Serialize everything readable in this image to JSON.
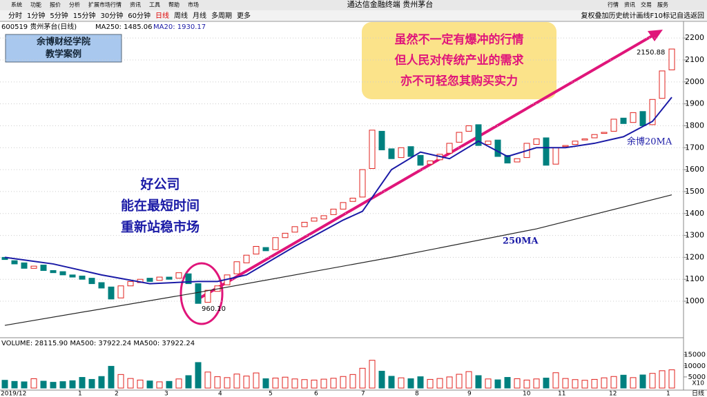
{
  "window": {
    "title": "通达信金融终端  贵州茅台",
    "menu": [
      "系统",
      "功能",
      "报价",
      "分析",
      "扩展市场行情",
      "资讯",
      "工具",
      "帮助",
      "市场"
    ],
    "buttons": [
      "行情",
      "资讯",
      "交易",
      "服务"
    ]
  },
  "toolbar": {
    "periods": [
      "分时",
      "1分钟",
      "5分钟",
      "15分钟",
      "30分钟",
      "60分钟",
      "日线",
      "周线",
      "月线",
      "多周期",
      "更多"
    ],
    "tools": "复权叠加历史统计画线F10标记自选返回"
  },
  "chart_data": {
    "type": "candlestick",
    "stock": "600519 贵州茅台(日线)",
    "indicators": [
      "MA250: 1485.06",
      "MA20: 1930.17"
    ],
    "logo": [
      "余博财经学院",
      "教学案例"
    ],
    "annotations": {
      "left": [
        "好公司",
        "能在最短时间",
        "重新站稳市场"
      ],
      "box": [
        "虽然不一定有爆冲的行情",
        "但人民对传统产业的需求",
        "亦不可轻忽其购买实力"
      ],
      "ma20": "余博20MA",
      "ma250": "250MA",
      "low": "960.10",
      "high": "2150.88"
    },
    "ylim": [
      843,
      2232
    ],
    "yticks": [
      1000,
      1100,
      1200,
      1300,
      1400,
      1500,
      1600,
      1700,
      1800,
      1900,
      2000,
      2100,
      2200
    ],
    "up_color": "#e0201c",
    "down_color": "#00807f",
    "candles": {
      "open": [
        1200,
        1185,
        1175,
        1150,
        1165,
        1140,
        1135,
        1120,
        1115,
        1105,
        1085,
        1065,
        1015,
        1070,
        1085,
        1105,
        1095,
        1110,
        1105,
        1125,
        1080,
        995,
        1045,
        1075,
        1125,
        1175,
        1215,
        1245,
        1235,
        1290,
        1315,
        1340,
        1365,
        1375,
        1395,
        1420,
        1455,
        1475,
        1605,
        1775,
        1695,
        1655,
        1705,
        1665,
        1625,
        1645,
        1675,
        1725,
        1775,
        1805,
        1715,
        1735,
        1665,
        1635,
        1655,
        1715,
        1745,
        1625,
        1705,
        1715,
        1735,
        1745,
        1765,
        1775,
        1835,
        1815,
        1865,
        1805,
        1925,
        2055
      ],
      "close": [
        1190,
        1170,
        1150,
        1160,
        1140,
        1130,
        1120,
        1110,
        1100,
        1080,
        1060,
        1010,
        1070,
        1090,
        1100,
        1090,
        1110,
        1100,
        1130,
        1080,
        990,
        1050,
        1070,
        1120,
        1180,
        1210,
        1250,
        1230,
        1290,
        1310,
        1340,
        1360,
        1380,
        1390,
        1420,
        1450,
        1470,
        1600,
        1780,
        1690,
        1650,
        1700,
        1660,
        1620,
        1640,
        1670,
        1720,
        1770,
        1800,
        1710,
        1730,
        1660,
        1630,
        1650,
        1720,
        1740,
        1620,
        1700,
        1710,
        1730,
        1740,
        1760,
        1770,
        1830,
        1810,
        1860,
        1800,
        1920,
        2050,
        2150
      ]
    },
    "ma_lines": [
      {
        "name": "MA20",
        "color": "#1a1aa6",
        "x": [
          0,
          5,
          10,
          15,
          20,
          22,
          25,
          30,
          35,
          37,
          40,
          43,
          46,
          49,
          52,
          55,
          58,
          61,
          64,
          67,
          69
        ],
        "values": [
          1200,
          1170,
          1120,
          1080,
          1090,
          1090,
          1120,
          1250,
          1370,
          1410,
          1600,
          1680,
          1650,
          1730,
          1660,
          1700,
          1700,
          1720,
          1750,
          1820,
          1930
        ]
      },
      {
        "name": "MA250",
        "color": "#222222",
        "x": [
          0,
          20,
          40,
          55,
          69
        ],
        "values": [
          890,
          1040,
          1200,
          1330,
          1485
        ]
      }
    ],
    "volume": {
      "info": "VOLUME: 28115.90  MA500: 37922.24  MA500: 37922.24",
      "ylim": [
        0,
        18000
      ],
      "yticks": [
        5000,
        10000,
        15000
      ],
      "unit": "X10",
      "values": [
        3500,
        3000,
        2800,
        4200,
        3100,
        2600,
        2900,
        3300,
        4800,
        3900,
        5200,
        9800,
        6100,
        4300,
        3600,
        3200,
        2800,
        3000,
        4100,
        5600,
        11500,
        7200,
        5100,
        4700,
        6300,
        5400,
        6800,
        4200,
        4500,
        4900,
        4100,
        3800,
        3600,
        4000,
        4400,
        5200,
        6100,
        8900,
        12500,
        7600,
        5300,
        4600,
        4200,
        5100,
        3900,
        4300,
        5000,
        6200,
        7400,
        5600,
        4100,
        3700,
        4800,
        4200,
        3600,
        4100,
        4500,
        6900,
        4300,
        3800,
        3500,
        3900,
        4600,
        5200,
        5800,
        4700,
        5900,
        6600,
        7800,
        8200
      ]
    },
    "months": [
      "2019/12",
      "1",
      "2",
      "3",
      "4",
      "5",
      "6",
      "7",
      "8",
      "9",
      "10",
      "11",
      "12",
      "1"
    ],
    "period": "日线"
  }
}
